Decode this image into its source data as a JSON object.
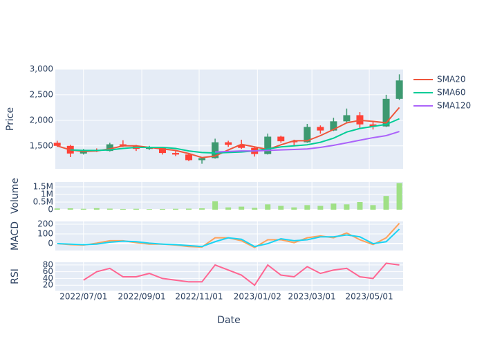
{
  "chart_data": {
    "type": "candlestick",
    "xlabel": "Date",
    "x": [
      "2022/06/03",
      "2022/06/17",
      "2022/07/01",
      "2022/07/15",
      "2022/07/29",
      "2022/08/12",
      "2022/08/26",
      "2022/09/09",
      "2022/09/23",
      "2022/10/07",
      "2022/10/21",
      "2022/11/04",
      "2022/11/18",
      "2022/12/02",
      "2022/12/16",
      "2022/12/30",
      "2023/01/13",
      "2023/01/27",
      "2023/02/10",
      "2023/02/24",
      "2023/03/10",
      "2023/03/24",
      "2023/04/07",
      "2023/04/21",
      "2023/05/05",
      "2023/05/19",
      "2023/06/02"
    ],
    "xlim": [
      "2022/06/01",
      "2023/06/06"
    ],
    "xticks": [
      "2022/07/01",
      "2022/09/01",
      "2022/11/01",
      "2023/01/02",
      "2023/03/01",
      "2023/05/01"
    ],
    "grid": true,
    "panels": [
      {
        "type": "candlestick",
        "ylabel": "Price",
        "open": [
          1560,
          1500,
          1350,
          1420,
          1400,
          1530,
          1500,
          1440,
          1470,
          1360,
          1330,
          1220,
          1260,
          1570,
          1520,
          1460,
          1340,
          1680,
          1590,
          1570,
          1870,
          1800,
          1980,
          2100,
          1920,
          1880,
          2420
        ],
        "high": [
          1600,
          1520,
          1440,
          1450,
          1560,
          1610,
          1520,
          1500,
          1480,
          1400,
          1350,
          1280,
          1640,
          1600,
          1620,
          1470,
          1740,
          1700,
          1620,
          1930,
          1900,
          2050,
          2230,
          2160,
          1970,
          2500,
          2900
        ],
        "low": [
          1480,
          1280,
          1330,
          1380,
          1390,
          1480,
          1400,
          1420,
          1330,
          1300,
          1200,
          1150,
          1250,
          1480,
          1440,
          1290,
          1330,
          1560,
          1500,
          1560,
          1740,
          1790,
          1950,
          1850,
          1820,
          1870,
          2400
        ],
        "close": [
          1500,
          1350,
          1420,
          1400,
          1530,
          1500,
          1440,
          1470,
          1360,
          1330,
          1220,
          1260,
          1570,
          1520,
          1460,
          1340,
          1680,
          1590,
          1570,
          1870,
          1800,
          1980,
          2100,
          1920,
          1880,
          2420,
          2780
        ],
        "increasing_color": "#3d9970",
        "decreasing_color": "#ff4136",
        "series": [
          {
            "name": "SMA20",
            "color": "#ef553b",
            "values": [
              1500,
              1420,
              1390,
              1400,
              1440,
              1500,
              1500,
              1470,
              1440,
              1410,
              1350,
              1270,
              1300,
              1420,
              1530,
              1480,
              1430,
              1520,
              1600,
              1600,
              1700,
              1820,
              1950,
              2000,
              1980,
              1950,
              2250
            ]
          },
          {
            "name": "SMA60",
            "color": "#00cc96",
            "values": [
              null,
              1420,
              1410,
              1410,
              1420,
              1450,
              1470,
              1470,
              1470,
              1450,
              1400,
              1370,
              1360,
              1370,
              1380,
              1400,
              1440,
              1480,
              1500,
              1520,
              1570,
              1650,
              1770,
              1840,
              1880,
              1920,
              2030
            ]
          },
          {
            "name": "SMA120",
            "color": "#ab63fa",
            "values": [
              null,
              null,
              null,
              null,
              null,
              null,
              null,
              null,
              null,
              null,
              null,
              null,
              1380,
              1390,
              1400,
              1400,
              1410,
              1420,
              1430,
              1440,
              1470,
              1510,
              1560,
              1610,
              1660,
              1700,
              1780
            ]
          }
        ],
        "ylim": [
          1050,
          3000
        ],
        "yticks": [
          {
            "value": 1500,
            "label": "1,500"
          },
          {
            "value": 2000,
            "label": "2,000"
          },
          {
            "value": 2500,
            "label": "2,500"
          },
          {
            "value": 3000,
            "label": "3,000"
          }
        ],
        "legend": "top-right"
      },
      {
        "type": "bar",
        "ylabel": "Volume",
        "color": "#9fe085",
        "values": [
          80000,
          90000,
          60000,
          100000,
          70000,
          50000,
          60000,
          40000,
          50000,
          60000,
          70000,
          90000,
          550000,
          150000,
          200000,
          120000,
          350000,
          250000,
          150000,
          300000,
          250000,
          400000,
          350000,
          500000,
          300000,
          900000,
          1750000
        ],
        "ylim": [
          0,
          1820000
        ],
        "yticks": [
          0,
          {
            "value": 500000,
            "label": "0.5M"
          },
          {
            "value": 1000000,
            "label": "1M"
          },
          {
            "value": 1500000,
            "label": "1.5M"
          }
        ]
      },
      {
        "type": "line",
        "ylabel": "MACD",
        "lines": [
          {
            "color": "#ffa15a",
            "values": [
              0,
              -10,
              -15,
              5,
              30,
              30,
              10,
              -5,
              -5,
              -15,
              -30,
              -35,
              60,
              60,
              30,
              -40,
              40,
              40,
              10,
              60,
              80,
              60,
              110,
              40,
              -10,
              60,
              210
            ]
          },
          {
            "color": "#19d3f3",
            "values": [
              0,
              -5,
              -10,
              -5,
              15,
              25,
              20,
              5,
              -5,
              -10,
              -20,
              -30,
              20,
              60,
              45,
              -30,
              0,
              50,
              30,
              40,
              70,
              70,
              90,
              70,
              0,
              20,
              150
            ]
          }
        ],
        "ylim": [
          -71,
          229
        ],
        "yticks": [
          0,
          100,
          200
        ]
      },
      {
        "type": "line",
        "ylabel": "RSI",
        "lines": [
          {
            "color": "#ff6692",
            "values": [
              null,
              null,
              35,
              60,
              70,
              45,
              45,
              55,
              40,
              35,
              30,
              30,
              80,
              65,
              50,
              20,
              80,
              50,
              45,
              75,
              55,
              65,
              70,
              45,
              40,
              85,
              80
            ]
          }
        ],
        "ylim": [
          4,
          88
        ],
        "yticks": [
          20,
          40,
          60,
          80
        ]
      }
    ]
  }
}
